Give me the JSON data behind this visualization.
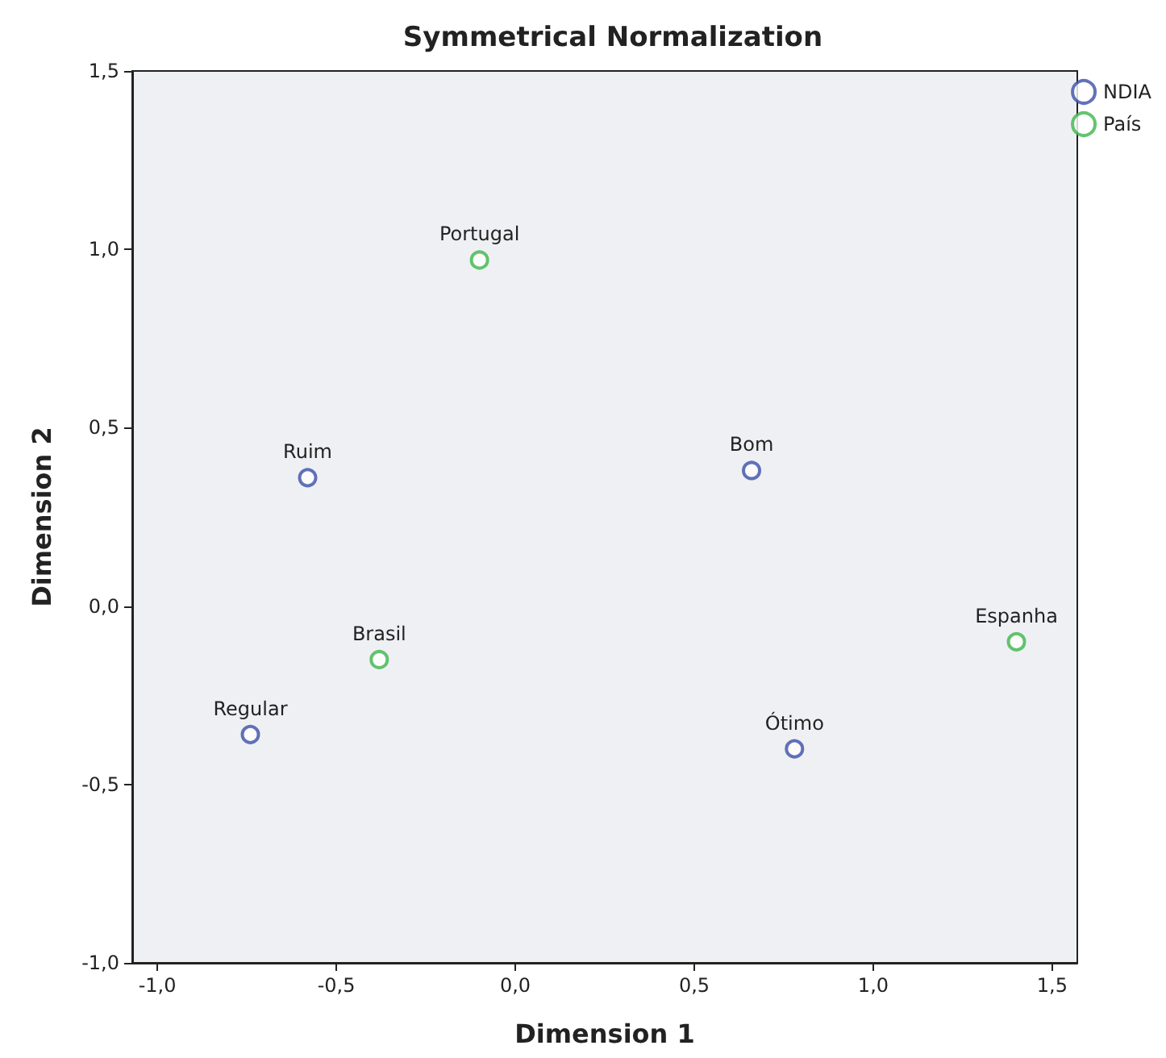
{
  "chart_data": {
    "type": "scatter",
    "title": "Symmetrical Normalization",
    "xlabel": "Dimension 1",
    "ylabel": "Dimension 2",
    "series": [
      {
        "name": "NDIA",
        "color": "#3b4fa8",
        "x": [
          -0.58,
          0.66,
          -0.74,
          0.78
        ],
        "values": [
          0.36,
          0.38,
          -0.36,
          -0.4
        ]
      },
      {
        "name": "País",
        "color": "#3cb54a",
        "x": [
          -0.1,
          -0.38,
          1.4
        ],
        "values": [
          0.97,
          -0.15,
          -0.1
        ]
      }
    ],
    "annotations": [
      {
        "text": "Ruim",
        "x": -0.58,
        "y": 0.36
      },
      {
        "text": "Bom",
        "x": 0.66,
        "y": 0.38
      },
      {
        "text": "Regular",
        "x": -0.74,
        "y": -0.36
      },
      {
        "text": "Ótimo",
        "x": 0.78,
        "y": -0.4
      },
      {
        "text": "Portugal",
        "x": -0.1,
        "y": 0.97
      },
      {
        "text": "Brasil",
        "x": -0.38,
        "y": -0.15
      },
      {
        "text": "Espanha",
        "x": 1.4,
        "y": -0.1
      }
    ],
    "xlim": [
      -1.07,
      1.57
    ],
    "ylim": [
      -1.0,
      1.5
    ],
    "xticks": [
      {
        "value": -1,
        "label": "-1,0"
      },
      {
        "value": -0.5,
        "label": "-0,5"
      },
      {
        "value": 0,
        "label": "0,0"
      },
      {
        "value": 0.5,
        "label": "0,5"
      },
      {
        "value": 1,
        "label": "1,0"
      },
      {
        "value": 1.5,
        "label": "1,5"
      }
    ],
    "yticks": [
      {
        "value": -1,
        "label": "-1,0"
      },
      {
        "value": -0.5,
        "label": "-0,5"
      },
      {
        "value": 0,
        "label": "0,0"
      },
      {
        "value": 0.5,
        "label": "0,5"
      },
      {
        "value": 1,
        "label": "1,0"
      },
      {
        "value": 1.5,
        "label": "1,5"
      }
    ],
    "grid": false,
    "legend": "top right",
    "marker": "circle"
  }
}
